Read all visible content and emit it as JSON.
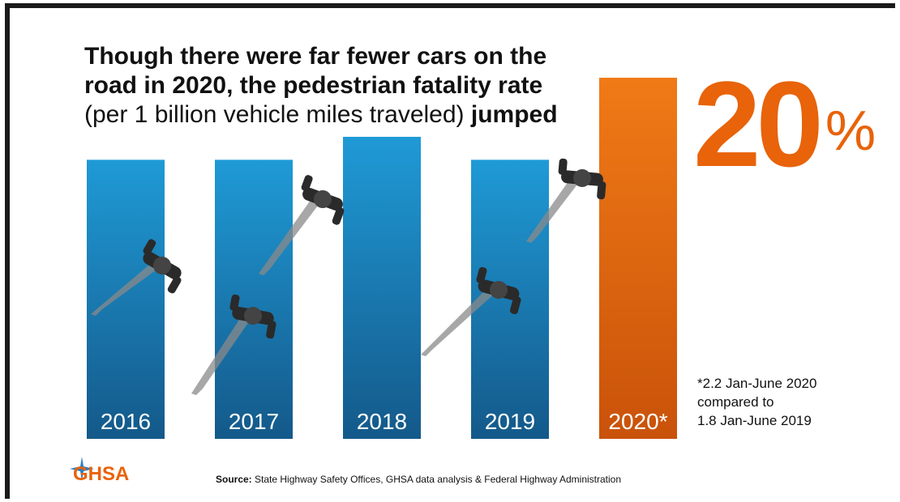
{
  "title": {
    "line1": "Though there were far fewer cars on the",
    "line2": "road in 2020, the pedestrian fatality rate",
    "line3_light": "(per 1 billion vehicle miles traveled)",
    "line3_bold": "jumped"
  },
  "highlight": {
    "value": "20",
    "unit": "%"
  },
  "note": {
    "line1": "*2.2 Jan-June 2020",
    "line2": "compared to",
    "line3": "1.8 Jan-June 2019"
  },
  "source": {
    "label": "Source:",
    "text": "State Highway Safety Offices, GHSA data analysis & Federal Highway Administration"
  },
  "logo": {
    "text": "GHSA"
  },
  "colors": {
    "blue_top": "#1f9ad6",
    "blue_bottom": "#14598a",
    "orange_top": "#f07a16",
    "orange_bottom": "#c9520a",
    "pedestrian": "#2a2a2a",
    "shadow": "#8a8a8a"
  },
  "chart_data": {
    "type": "bar",
    "categories": [
      "2016",
      "2017",
      "2018",
      "2019",
      "2020*"
    ],
    "values": [
      1.7,
      1.7,
      1.84,
      1.7,
      2.2
    ],
    "highlight_index": 4,
    "title": "",
    "xlabel": "",
    "ylabel": "",
    "ylim": [
      0,
      2.2
    ]
  }
}
